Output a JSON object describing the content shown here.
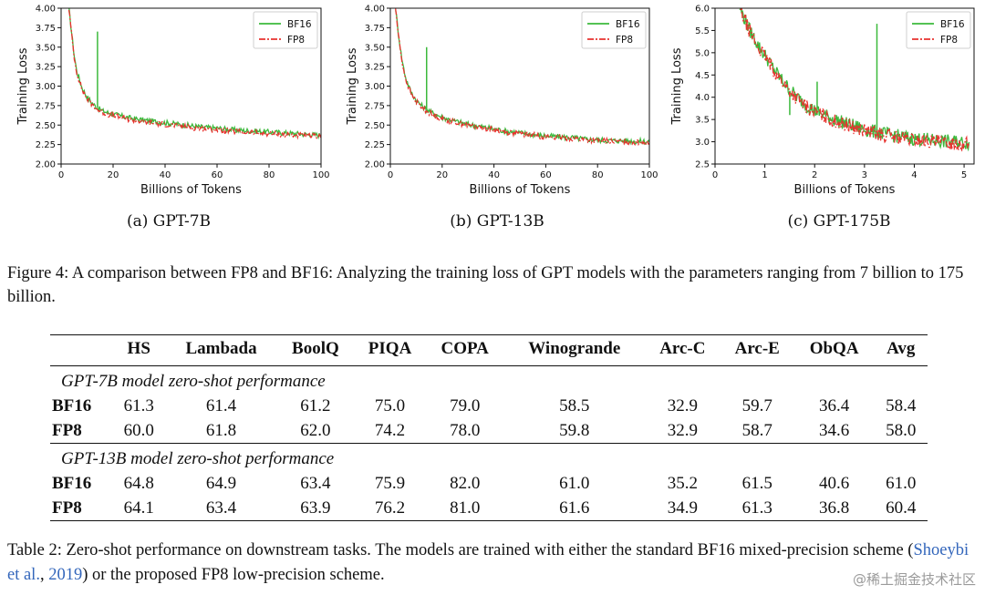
{
  "charts": [
    {
      "caption": "(a) GPT-7B",
      "chart_data": {
        "type": "line",
        "xlabel": "Billions of Tokens",
        "ylabel": "Training Loss",
        "xlim": [
          0,
          100
        ],
        "ylim": [
          2.0,
          4.0
        ],
        "xticks": [
          "0",
          "20",
          "40",
          "60",
          "80",
          "100"
        ],
        "yticks": [
          "2.00",
          "2.25",
          "2.50",
          "2.75",
          "3.00",
          "3.25",
          "3.50",
          "3.75",
          "4.00"
        ],
        "legend": "top-right",
        "series": [
          {
            "name": "BF16",
            "color": "#3cb93c",
            "style": "solid",
            "x": [
              3,
              4,
              5,
              6,
              8,
              10,
              12,
              14,
              16,
              18,
              20,
              25,
              30,
              35,
              40,
              45,
              50,
              55,
              60,
              65,
              70,
              75,
              80,
              85,
              90,
              95,
              100
            ],
            "y": [
              4.0,
              3.7,
              3.4,
              3.2,
              2.98,
              2.86,
              2.78,
              2.72,
              2.68,
              2.66,
              2.64,
              2.6,
              2.57,
              2.55,
              2.53,
              2.51,
              2.49,
              2.47,
              2.46,
              2.44,
              2.43,
              2.42,
              2.41,
              2.4,
              2.39,
              2.38,
              2.37
            ],
            "spike": {
              "x": 14,
              "y": 3.7
            }
          },
          {
            "name": "FP8",
            "color": "#e8322e",
            "style": "dashdot",
            "x": [
              3,
              4,
              5,
              6,
              8,
              10,
              12,
              14,
              16,
              18,
              20,
              25,
              30,
              35,
              40,
              45,
              50,
              55,
              60,
              65,
              70,
              75,
              80,
              85,
              90,
              95,
              100
            ],
            "y": [
              4.0,
              3.68,
              3.38,
              3.18,
              2.96,
              2.84,
              2.76,
              2.7,
              2.66,
              2.64,
              2.62,
              2.58,
              2.55,
              2.53,
              2.51,
              2.49,
              2.47,
              2.45,
              2.44,
              2.42,
              2.41,
              2.4,
              2.39,
              2.38,
              2.37,
              2.36,
              2.35
            ]
          }
        ]
      }
    },
    {
      "caption": "(b) GPT-13B",
      "chart_data": {
        "type": "line",
        "xlabel": "Billions of Tokens",
        "ylabel": "Training Loss",
        "xlim": [
          0,
          100
        ],
        "ylim": [
          2.0,
          4.0
        ],
        "xticks": [
          "0",
          "20",
          "40",
          "60",
          "80",
          "100"
        ],
        "yticks": [
          "2.00",
          "2.25",
          "2.50",
          "2.75",
          "3.00",
          "3.25",
          "3.50",
          "3.75",
          "4.00"
        ],
        "legend": "top-right",
        "series": [
          {
            "name": "BF16",
            "color": "#3cb93c",
            "style": "solid",
            "x": [
              2,
              3,
              4,
              5,
              6,
              8,
              10,
              12,
              14,
              16,
              18,
              20,
              25,
              30,
              35,
              40,
              45,
              50,
              55,
              60,
              65,
              70,
              75,
              80,
              85,
              90,
              95,
              100
            ],
            "y": [
              4.0,
              3.7,
              3.45,
              3.25,
              3.1,
              2.92,
              2.82,
              2.75,
              2.7,
              2.66,
              2.63,
              2.6,
              2.55,
              2.51,
              2.48,
              2.45,
              2.42,
              2.4,
              2.38,
              2.36,
              2.35,
              2.34,
              2.32,
              2.31,
              2.3,
              2.3,
              2.29,
              2.29
            ],
            "spike": {
              "x": 14,
              "y": 3.5
            }
          },
          {
            "name": "FP8",
            "color": "#e8322e",
            "style": "dashdot",
            "x": [
              2,
              3,
              4,
              5,
              6,
              8,
              10,
              12,
              14,
              16,
              18,
              20,
              25,
              30,
              35,
              40,
              45,
              50,
              55,
              60,
              65,
              70,
              75,
              80,
              85,
              90,
              95,
              100
            ],
            "y": [
              4.0,
              3.68,
              3.43,
              3.23,
              3.08,
              2.9,
              2.8,
              2.73,
              2.68,
              2.64,
              2.61,
              2.58,
              2.54,
              2.5,
              2.47,
              2.44,
              2.41,
              2.39,
              2.37,
              2.35,
              2.34,
              2.33,
              2.31,
              2.3,
              2.29,
              2.29,
              2.28,
              2.28
            ]
          }
        ]
      }
    },
    {
      "caption": "(c) GPT-175B",
      "chart_data": {
        "type": "line",
        "xlabel": "Billions of Tokens",
        "ylabel": "Training Loss",
        "xlim": [
          0,
          5.2
        ],
        "ylim": [
          2.5,
          6.0
        ],
        "xticks": [
          "0",
          "1",
          "2",
          "3",
          "4",
          "5"
        ],
        "yticks": [
          "2.5",
          "3.0",
          "3.5",
          "4.0",
          "4.5",
          "5.0",
          "5.5",
          "6.0"
        ],
        "legend": "top-right",
        "series": [
          {
            "name": "BF16",
            "color": "#3cb93c",
            "style": "solid",
            "x": [
              0.5,
              0.6,
              0.7,
              0.8,
              0.9,
              1.0,
              1.2,
              1.4,
              1.6,
              1.8,
              2.0,
              2.2,
              2.4,
              2.6,
              2.8,
              3.0,
              3.2,
              3.4,
              3.6,
              3.8,
              4.0,
              4.2,
              4.4,
              4.6,
              4.8,
              5.0,
              5.1
            ],
            "y": [
              6.0,
              5.75,
              5.5,
              5.3,
              5.1,
              4.95,
              4.6,
              4.3,
              4.05,
              3.85,
              3.7,
              3.6,
              3.5,
              3.42,
              3.35,
              3.28,
              3.22,
              3.18,
              3.14,
              3.1,
              3.07,
              3.05,
              3.03,
              3.01,
              3.0,
              2.98,
              2.97
            ],
            "spikes": [
              {
                "x": 1.5,
                "y": 3.6
              },
              {
                "x": 2.05,
                "y": 4.35
              },
              {
                "x": 3.25,
                "y": 5.65
              }
            ]
          },
          {
            "name": "FP8",
            "color": "#e8322e",
            "style": "dashdot",
            "x": [
              0.5,
              0.6,
              0.7,
              0.8,
              0.9,
              1.0,
              1.2,
              1.4,
              1.6,
              1.8,
              2.0,
              2.2,
              2.4,
              2.6,
              2.8,
              3.0,
              3.2,
              3.4,
              3.6,
              3.8,
              4.0,
              4.2,
              4.4,
              4.6,
              4.8,
              5.0,
              5.1
            ],
            "y": [
              6.0,
              5.72,
              5.47,
              5.27,
              5.07,
              4.92,
              4.57,
              4.27,
              4.02,
              3.82,
              3.67,
              3.57,
              3.47,
              3.39,
              3.32,
              3.25,
              3.19,
              3.15,
              3.11,
              3.07,
              3.04,
              3.02,
              3.0,
              2.98,
              2.97,
              2.95,
              2.94
            ]
          }
        ]
      }
    }
  ],
  "figure_caption": "Figure 4: A comparison between FP8 and BF16: Analyzing the training loss of GPT models with the parameters ranging from 7 billion to 175 billion.",
  "table": {
    "columns": [
      "",
      "HS",
      "Lambada",
      "BoolQ",
      "PIQA",
      "COPA",
      "Winogrande",
      "Arc-C",
      "Arc-E",
      "ObQA",
      "Avg"
    ],
    "sections": [
      {
        "title": "GPT-7B model zero-shot performance",
        "rows": [
          {
            "label": "BF16",
            "values": [
              "61.3",
              "61.4",
              "61.2",
              "75.0",
              "79.0",
              "58.5",
              "32.9",
              "59.7",
              "36.4",
              "58.4"
            ]
          },
          {
            "label": "FP8",
            "values": [
              "60.0",
              "61.8",
              "62.0",
              "74.2",
              "78.0",
              "59.8",
              "32.9",
              "58.7",
              "34.6",
              "58.0"
            ]
          }
        ]
      },
      {
        "title": "GPT-13B model zero-shot performance",
        "rows": [
          {
            "label": "BF16",
            "values": [
              "64.8",
              "64.9",
              "63.4",
              "75.9",
              "82.0",
              "61.0",
              "35.2",
              "61.5",
              "40.6",
              "61.0"
            ]
          },
          {
            "label": "FP8",
            "values": [
              "64.1",
              "63.4",
              "63.9",
              "76.2",
              "81.0",
              "61.6",
              "34.9",
              "61.3",
              "36.8",
              "60.4"
            ]
          }
        ]
      }
    ]
  },
  "table_caption": {
    "before": "Table 2: Zero-shot performance on downstream tasks. The models are trained with either the standard BF16 mixed-precision scheme (",
    "cite_author": "Shoeybi et al.",
    "cite_sep": ", ",
    "cite_year": "2019",
    "after": ") or the proposed FP8 low-precision scheme."
  },
  "watermark": "@稀土掘金技术社区"
}
